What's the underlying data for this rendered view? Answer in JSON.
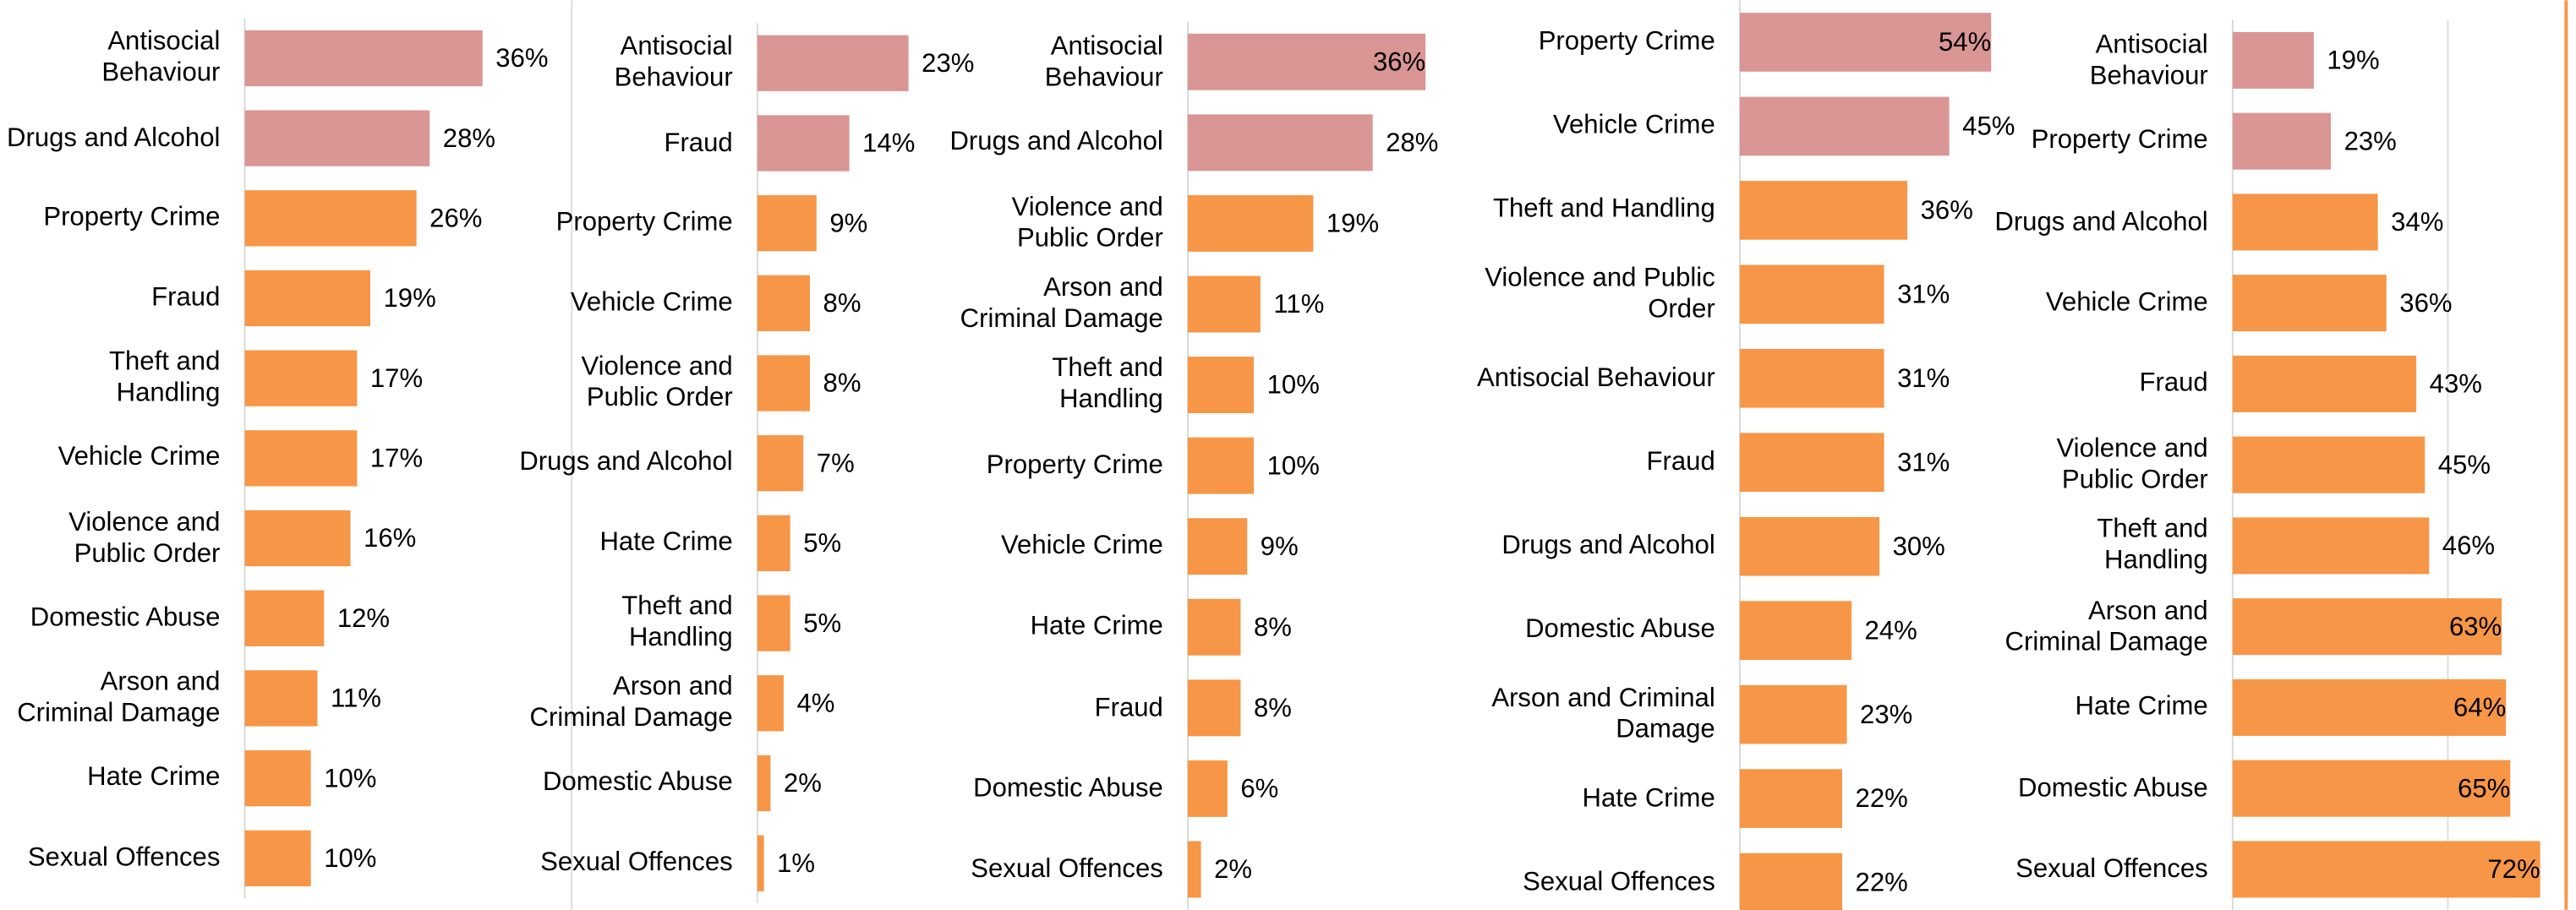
{
  "chart_data": [
    {
      "type": "barh",
      "xlim": [
        0,
        50
      ],
      "categories": [
        "Antisocial Behaviour",
        "Drugs and Alcohol",
        "Property Crime",
        "Fraud",
        "Theft and Handling",
        "Vehicle Crime",
        "Violence and Public Order",
        "Domestic Abuse",
        "Arson and Criminal Damage",
        "Hate Crime",
        "Sexual Offences"
      ],
      "values": [
        36,
        28,
        26,
        19,
        17,
        17,
        16,
        12,
        11,
        10,
        10
      ],
      "value_labels": [
        "36%",
        "28%",
        "26%",
        "19%",
        "17%",
        "17%",
        "16%",
        "12%",
        "11%",
        "10%",
        "10%"
      ],
      "colors": [
        "#d99694",
        "#d99694",
        "#f79646",
        "#f79646",
        "#f79646",
        "#f79646",
        "#f79646",
        "#f79646",
        "#f79646",
        "#f79646",
        "#f79646"
      ]
    },
    {
      "type": "barh",
      "xlim": [
        0,
        50
      ],
      "categories": [
        "Antisocial Behaviour",
        "Fraud",
        "Property Crime",
        "Vehicle Crime",
        "Violence and Public Order",
        "Drugs and Alcohol",
        "Hate Crime",
        "Theft and Handling",
        "Arson and Criminal Damage",
        "Domestic Abuse",
        "Sexual Offences"
      ],
      "values": [
        23,
        14,
        9,
        8,
        8,
        7,
        5,
        5,
        4,
        2,
        1
      ],
      "value_labels": [
        "23%",
        "14%",
        "9%",
        "8%",
        "8%",
        "7%",
        "5%",
        "5%",
        "4%",
        "2%",
        "1%"
      ],
      "colors": [
        "#d99694",
        "#d99694",
        "#f79646",
        "#f79646",
        "#f79646",
        "#f79646",
        "#f79646",
        "#f79646",
        "#f79646",
        "#f79646",
        "#f79646"
      ]
    },
    {
      "type": "barh",
      "xlim": [
        0,
        50
      ],
      "categories": [
        "Antisocial Behaviour",
        "Drugs and Alcohol",
        "Violence and Public Order",
        "Arson and Criminal Damage",
        "Theft and Handling",
        "Property Crime",
        "Vehicle Crime",
        "Hate Crime",
        "Fraud",
        "Domestic Abuse",
        "Sexual Offences"
      ],
      "values": [
        36,
        28,
        19,
        11,
        10,
        10,
        9,
        8,
        8,
        6,
        2
      ],
      "value_labels": [
        "36%",
        "28%",
        "19%",
        "11%",
        "10%",
        "10%",
        "9%",
        "8%",
        "8%",
        "6%",
        "2%"
      ],
      "colors": [
        "#d99694",
        "#d99694",
        "#f79646",
        "#f79646",
        "#f79646",
        "#f79646",
        "#f79646",
        "#f79646",
        "#f79646",
        "#f79646",
        "#f79646"
      ]
    },
    {
      "type": "barh",
      "xlim": [
        0,
        60
      ],
      "categories": [
        "Property Crime",
        "Vehicle Crime",
        "Theft and Handling",
        "Violence and Public Order",
        "Antisocial Behaviour",
        "Fraud",
        "Drugs and Alcohol",
        "Domestic Abuse",
        "Arson and Criminal Damage",
        "Hate Crime",
        "Sexual Offences"
      ],
      "values": [
        54,
        45,
        36,
        31,
        31,
        31,
        30,
        24,
        23,
        22,
        22
      ],
      "value_labels": [
        "54%",
        "45%",
        "36%",
        "31%",
        "31%",
        "31%",
        "30%",
        "24%",
        "23%",
        "22%",
        "22%"
      ],
      "colors": [
        "#d99694",
        "#d99694",
        "#f79646",
        "#f79646",
        "#f79646",
        "#f79646",
        "#f79646",
        "#f79646",
        "#f79646",
        "#f79646",
        "#f79646"
      ]
    },
    {
      "type": "barh",
      "xlim": [
        0,
        80
      ],
      "categories": [
        "Antisocial Behaviour",
        "Property Crime",
        "Drugs and Alcohol",
        "Vehicle Crime",
        "Fraud",
        "Violence and Public Order",
        "Theft and Handling",
        "Arson and Criminal Damage",
        "Hate Crime",
        "Domestic Abuse",
        "Sexual Offences"
      ],
      "values": [
        19,
        23,
        34,
        36,
        43,
        45,
        46,
        63,
        64,
        65,
        72
      ],
      "value_labels": [
        "19%",
        "23%",
        "34%",
        "36%",
        "43%",
        "45%",
        "46%",
        "63%",
        "64%",
        "65%",
        "72%"
      ],
      "colors": [
        "#d99694",
        "#d99694",
        "#f79646",
        "#f79646",
        "#f79646",
        "#f79646",
        "#f79646",
        "#f79646",
        "#f79646",
        "#f79646",
        "#f79646"
      ]
    }
  ]
}
